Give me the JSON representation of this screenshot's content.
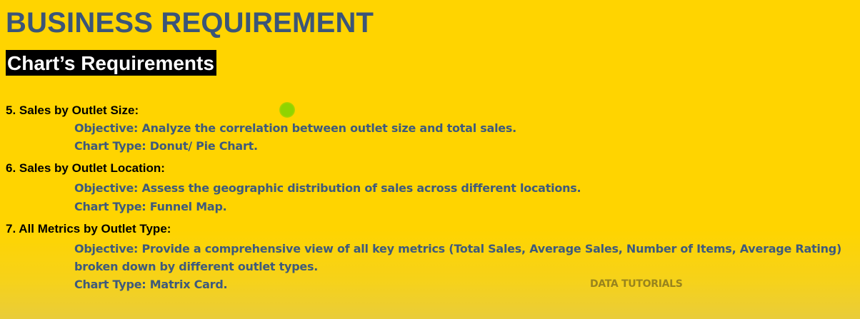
{
  "page": {
    "title": "BUSINESS REQUIREMENT",
    "section_banner": "Chart’s Requirements"
  },
  "requirements": [
    {
      "heading": "5. Sales by Outlet Size:",
      "lines": [
        "Objective: Analyze the correlation between outlet size and total sales.",
        "Chart Type: Donut/ Pie Chart."
      ]
    },
    {
      "heading": "6. Sales by Outlet Location:",
      "lines": [
        "Objective: Assess the geographic distribution of sales across different locations.",
        "Chart Type: Funnel Map."
      ]
    },
    {
      "heading": "7. All Metrics by Outlet Type:",
      "lines": [
        "Objective: Provide a comprehensive view of all key metrics (Total Sales, Average Sales, Number of Items, Average Rating)",
        "broken down by different outlet types.",
        "Chart Type: Matrix Card."
      ]
    }
  ],
  "watermark": "DATA TUTORIALS",
  "colors": {
    "background": "#FFD400",
    "title": "#3B5578",
    "banner_background": "#000000",
    "banner_text": "#FFFFFF",
    "heading_text": "#000000",
    "body_text": "#3E5A7C",
    "cursor_highlight": "#8FD400"
  }
}
